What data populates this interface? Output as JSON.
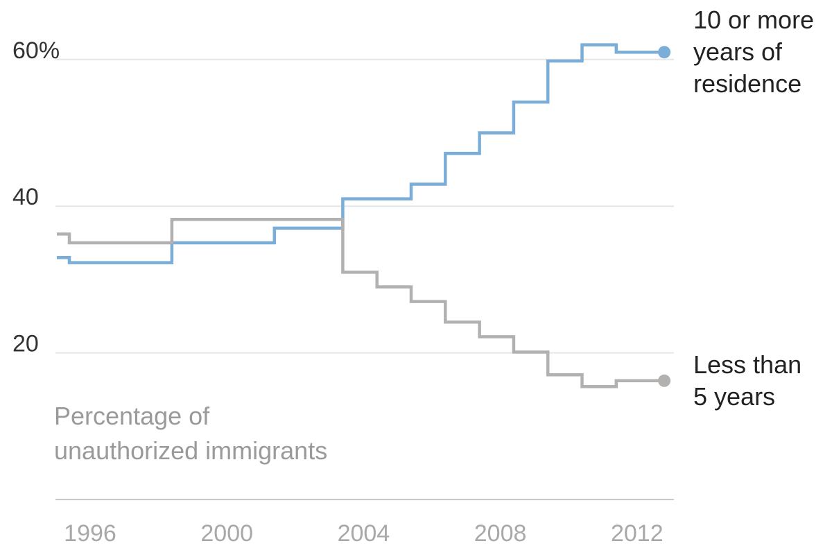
{
  "chart_data": {
    "type": "line",
    "step": true,
    "x": [
      1994.5,
      1996,
      1997.5,
      1999,
      2000.5,
      2002,
      2003.5,
      2004,
      2005,
      2006,
      2007,
      2008,
      2009,
      2010,
      2011,
      2012,
      2013
    ],
    "series": [
      {
        "name": "10 or more years of residence",
        "label_lines": [
          "10 or more",
          "years of",
          "residence"
        ],
        "color": "#7aaed8",
        "values": [
          33,
          32.3,
          32.3,
          35,
          35,
          37,
          37,
          41,
          41,
          43,
          47.2,
          50,
          54.2,
          59.8,
          62,
          61,
          61
        ]
      },
      {
        "name": "Less than 5 years",
        "label_lines": [
          "Less than",
          "5 years"
        ],
        "color": "#b3b0b0",
        "values": [
          36.2,
          35,
          35,
          38.2,
          38.2,
          38.2,
          38.2,
          31,
          29,
          27,
          24.2,
          22.2,
          20.1,
          17,
          15.4,
          16.2,
          16.2
        ]
      }
    ],
    "xticks": [
      "1996",
      "2000",
      "2004",
      "2008",
      "2012"
    ],
    "xtick_values": [
      1996,
      2000,
      2004,
      2008,
      2012
    ],
    "yticks": [
      "60%",
      "40",
      "20"
    ],
    "ytick_values": [
      60,
      40,
      20
    ],
    "ylabel_lines": [
      "Percentage of",
      "unauthorized immigrants"
    ],
    "xlim": [
      1996.1,
      2014.4
    ],
    "ylim": [
      0,
      70
    ],
    "grid": true
  }
}
